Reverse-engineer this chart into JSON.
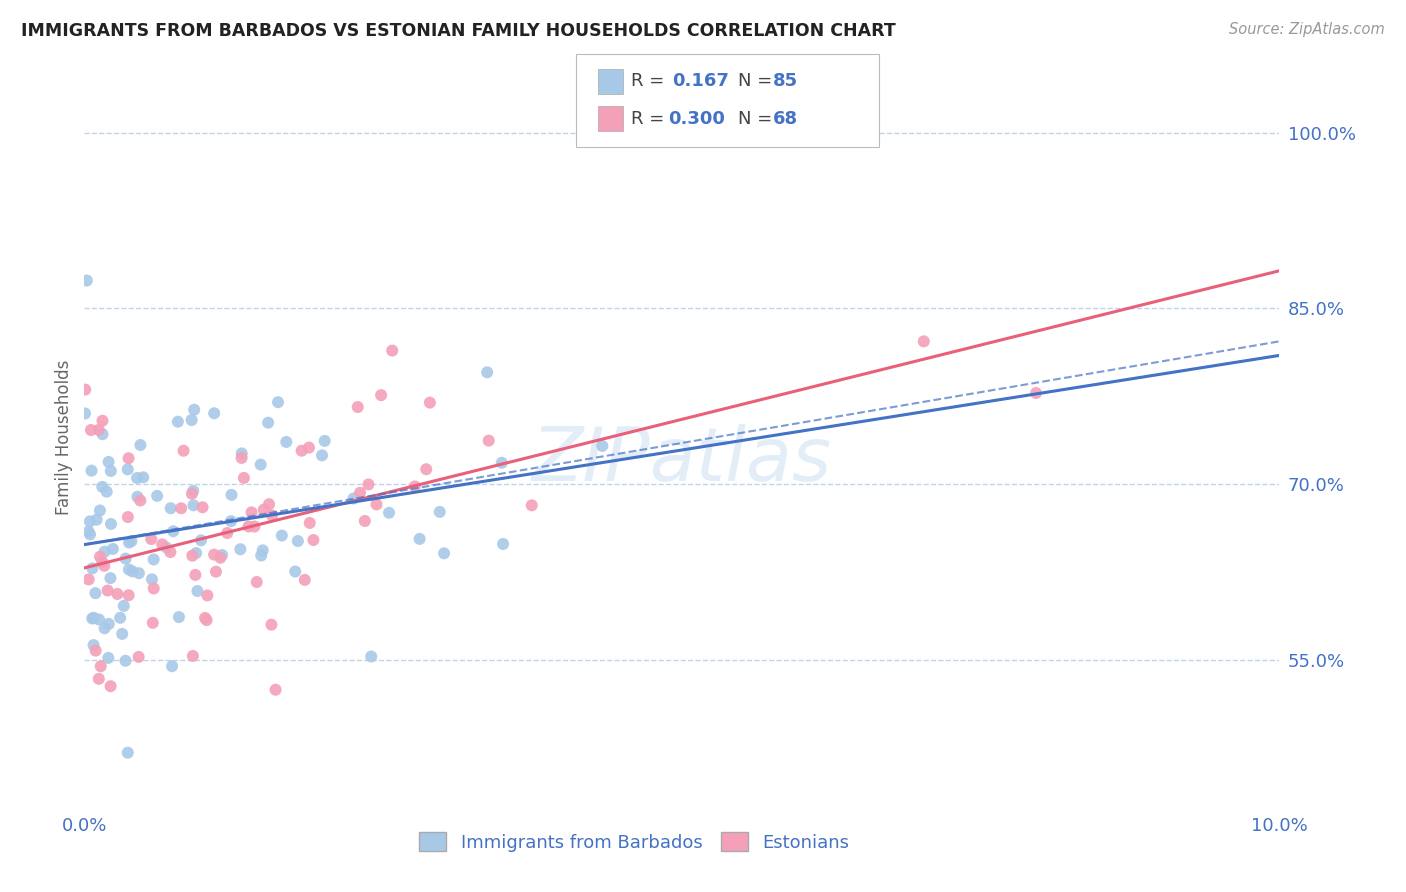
{
  "title": "IMMIGRANTS FROM BARBADOS VS ESTONIAN FAMILY HOUSEHOLDS CORRELATION CHART",
  "source": "Source: ZipAtlas.com",
  "ylabel": "Family Households",
  "xlim": [
    0.0,
    0.1
  ],
  "ylim": [
    0.42,
    1.06
  ],
  "yticks": [
    0.55,
    0.7,
    0.85,
    1.0
  ],
  "ytick_labels": [
    "55.0%",
    "70.0%",
    "85.0%",
    "100.0%"
  ],
  "xticks": [
    0.0,
    0.02,
    0.04,
    0.06,
    0.08,
    0.1
  ],
  "xtick_labels": [
    "0.0%",
    "",
    "",
    "",
    "",
    "10.0%"
  ],
  "watermark": "ZIPatlas",
  "series1_color": "#a8c8e8",
  "series2_color": "#f4a0b8",
  "line1_color": "#4472c4",
  "line2_color": "#e8607a",
  "background_color": "#ffffff",
  "grid_color": "#c0d4e8",
  "title_color": "#222222",
  "axis_label_color": "#4472c4",
  "series1_label": "Immigrants from Barbados",
  "series2_label": "Estonians",
  "series1_R": 0.167,
  "series1_N": 85,
  "series2_R": 0.3,
  "series2_N": 68,
  "line1_intercept": 0.644,
  "line1_slope": 1.92,
  "line2_intercept": 0.638,
  "line2_slope": 2.1,
  "seed1": 42,
  "seed2": 137
}
